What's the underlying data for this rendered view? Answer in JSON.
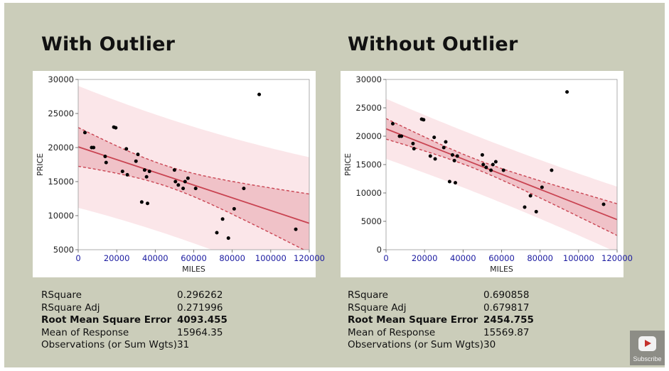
{
  "chart_data": [
    {
      "type": "scatter",
      "title": "With Outlier",
      "xlabel": "MILES",
      "ylabel": "PRICE",
      "xlim": [
        0,
        120000
      ],
      "ylim": [
        5000,
        30000
      ],
      "xticks": [
        "0",
        "20000",
        "40000",
        "60000",
        "80000",
        "100000",
        "120000"
      ],
      "yticks": [
        "5000",
        "10000",
        "15000",
        "20000",
        "25000",
        "30000"
      ],
      "points": [
        [
          3500,
          22200
        ],
        [
          7000,
          20000
        ],
        [
          8000,
          20000
        ],
        [
          14000,
          18700
        ],
        [
          14500,
          17800
        ],
        [
          18500,
          23000
        ],
        [
          19500,
          22900
        ],
        [
          23000,
          16500
        ],
        [
          25000,
          19800
        ],
        [
          25500,
          16000
        ],
        [
          30000,
          18000
        ],
        [
          31000,
          19000
        ],
        [
          33000,
          12000
        ],
        [
          34500,
          16700
        ],
        [
          35500,
          15700
        ],
        [
          36000,
          11800
        ],
        [
          37000,
          16500
        ],
        [
          50000,
          16700
        ],
        [
          50500,
          15000
        ],
        [
          52000,
          14500
        ],
        [
          54500,
          14000
        ],
        [
          55500,
          15000
        ],
        [
          57000,
          15500
        ],
        [
          61000,
          14000
        ],
        [
          72000,
          7500
        ],
        [
          75000,
          9500
        ],
        [
          78000,
          6700
        ],
        [
          81000,
          11000
        ],
        [
          86000,
          14000
        ],
        [
          94000,
          27800
        ],
        [
          113000,
          8000
        ]
      ],
      "fit": {
        "intercept": 20100,
        "slope": -0.0935
      },
      "confidence_band": {
        "center_x": 45000,
        "half_width_at_center": 1500,
        "half_width_at_edge": 4300
      },
      "prediction_band": {
        "center_x": 45000,
        "half_width_at_center": 8500,
        "half_width_at_edge": 9700
      },
      "stats": [
        {
          "label": "RSquare",
          "value": "0.296262",
          "bold": false
        },
        {
          "label": "RSquare Adj",
          "value": "0.271996",
          "bold": false
        },
        {
          "label": "Root Mean Square Error",
          "value": "4093.455",
          "bold": true
        },
        {
          "label": "Mean of Response",
          "value": "15964.35",
          "bold": false
        },
        {
          "label": "Observations (or Sum Wgts)",
          "value": "31",
          "bold": false
        }
      ]
    },
    {
      "type": "scatter",
      "title": "Without Outlier",
      "xlabel": "MILES",
      "ylabel": "PRICE",
      "xlim": [
        0,
        120000
      ],
      "ylim": [
        0,
        30000
      ],
      "xticks": [
        "0",
        "20000",
        "40000",
        "60000",
        "80000",
        "100000",
        "120000"
      ],
      "yticks": [
        "0",
        "5000",
        "10000",
        "15000",
        "20000",
        "25000",
        "30000"
      ],
      "points": [
        [
          3500,
          22200
        ],
        [
          7000,
          20000
        ],
        [
          8000,
          20000
        ],
        [
          14000,
          18700
        ],
        [
          14500,
          17800
        ],
        [
          18500,
          23000
        ],
        [
          19500,
          22900
        ],
        [
          23000,
          16500
        ],
        [
          25000,
          19800
        ],
        [
          25500,
          16000
        ],
        [
          30000,
          18000
        ],
        [
          31000,
          19000
        ],
        [
          33000,
          12000
        ],
        [
          34500,
          16700
        ],
        [
          35500,
          15700
        ],
        [
          36000,
          11800
        ],
        [
          37000,
          16500
        ],
        [
          50000,
          16700
        ],
        [
          50500,
          15000
        ],
        [
          52000,
          14500
        ],
        [
          54500,
          14000
        ],
        [
          55500,
          15000
        ],
        [
          57000,
          15500
        ],
        [
          61000,
          14000
        ],
        [
          72000,
          7500
        ],
        [
          75000,
          9500
        ],
        [
          78000,
          6700
        ],
        [
          81000,
          11000
        ],
        [
          86000,
          14000
        ],
        [
          94000,
          27800
        ],
        [
          113000,
          8000
        ]
      ],
      "fit": {
        "intercept": 21300,
        "slope": -0.1333
      },
      "confidence_band": {
        "center_x": 45000,
        "half_width_at_center": 850,
        "half_width_at_edge": 2800
      },
      "prediction_band": {
        "center_x": 45000,
        "half_width_at_center": 5000,
        "half_width_at_edge": 5800
      },
      "stats": [
        {
          "label": "RSquare",
          "value": "0.690858",
          "bold": false
        },
        {
          "label": "RSquare Adj",
          "value": "0.679817",
          "bold": false
        },
        {
          "label": "Root Mean Square Error",
          "value": "2454.755",
          "bold": true
        },
        {
          "label": "Mean of Response",
          "value": "15569.87",
          "bold": false
        },
        {
          "label": "Observations (or Sum Wgts)",
          "value": "30",
          "bold": false
        }
      ]
    }
  ],
  "colors": {
    "background": "#cbcdba",
    "fit_line": "#c94452",
    "confidence_fill": "#f0c2c8",
    "prediction_fill": "#fbe6e9",
    "point": "#000000",
    "axis_ticks": "#1a1aa0"
  },
  "subscribe": {
    "label": "Subscribe",
    "icon": "play-icon"
  }
}
